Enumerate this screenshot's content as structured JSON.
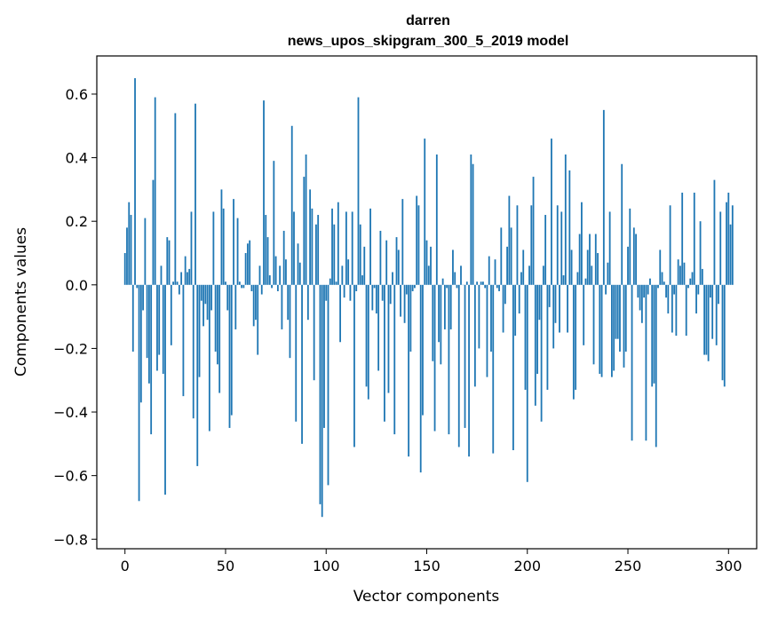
{
  "chart_data": {
    "type": "bar",
    "title": "darren",
    "subtitle": "news_upos_skipgram_300_5_2019 model",
    "xlabel": "Vector components",
    "ylabel": "Components values",
    "xlim": [
      -14,
      314
    ],
    "ylim": [
      -0.83,
      0.72
    ],
    "xticks": [
      0,
      50,
      100,
      150,
      200,
      250,
      300
    ],
    "xtick_labels": [
      "0",
      "50",
      "100",
      "150",
      "200",
      "250",
      "300"
    ],
    "yticks": [
      -0.8,
      -0.6,
      -0.4,
      -0.2,
      0.0,
      0.2,
      0.4,
      0.6
    ],
    "ytick_labels": [
      "−0.8",
      "−0.6",
      "−0.4",
      "−0.2",
      "0.0",
      "0.2",
      "0.4",
      "0.6"
    ],
    "bar_color": "#1f77b4",
    "values": [
      0.1,
      0.18,
      0.26,
      0.22,
      -0.21,
      0.65,
      -0.01,
      -0.68,
      -0.37,
      -0.08,
      0.21,
      -0.23,
      -0.31,
      -0.47,
      0.33,
      0.59,
      -0.27,
      -0.22,
      0.06,
      -0.28,
      -0.66,
      0.15,
      0.14,
      -0.19,
      0.01,
      0.54,
      0.01,
      -0.03,
      0.04,
      -0.35,
      0.09,
      0.04,
      0.05,
      0.23,
      -0.42,
      0.57,
      -0.57,
      -0.29,
      -0.05,
      -0.13,
      -0.06,
      -0.11,
      -0.46,
      -0.08,
      0.23,
      -0.21,
      -0.25,
      -0.34,
      0.3,
      0.24,
      0.01,
      -0.08,
      -0.45,
      -0.41,
      0.27,
      -0.14,
      0.21,
      0.01,
      -0.01,
      -0.01,
      0.1,
      0.13,
      0.14,
      -0.02,
      -0.13,
      -0.11,
      -0.22,
      0.06,
      -0.03,
      0.58,
      0.22,
      0.15,
      0.03,
      -0.01,
      0.39,
      0.09,
      -0.02,
      0.06,
      -0.14,
      0.17,
      0.08,
      -0.11,
      -0.23,
      0.5,
      0.23,
      -0.43,
      0.13,
      0.07,
      -0.5,
      0.34,
      0.41,
      -0.11,
      0.3,
      0.24,
      -0.3,
      0.19,
      0.22,
      -0.69,
      -0.73,
      -0.45,
      -0.05,
      -0.63,
      0.02,
      0.24,
      0.19,
      0.01,
      0.26,
      -0.18,
      0.06,
      -0.04,
      0.23,
      0.08,
      -0.05,
      0.23,
      -0.51,
      -0.02,
      0.59,
      0.19,
      0.03,
      0.12,
      -0.32,
      -0.36,
      0.24,
      -0.08,
      -0.01,
      -0.09,
      -0.27,
      0.17,
      -0.05,
      -0.43,
      0.14,
      -0.34,
      -0.06,
      0.04,
      -0.47,
      0.15,
      0.11,
      -0.1,
      0.27,
      -0.12,
      -0.03,
      -0.54,
      -0.21,
      -0.02,
      -0.01,
      0.28,
      0.25,
      -0.59,
      -0.41,
      0.46,
      0.14,
      0.06,
      0.12,
      -0.24,
      -0.46,
      0.41,
      -0.18,
      -0.25,
      0.02,
      -0.14,
      -0.01,
      -0.47,
      -0.14,
      0.11,
      0.04,
      -0.01,
      -0.51,
      0.06,
      0.0,
      -0.45,
      0.01,
      -0.54,
      0.41,
      0.38,
      -0.32,
      0.01,
      -0.2,
      0.01,
      0.01,
      -0.01,
      -0.29,
      0.09,
      -0.21,
      -0.53,
      0.08,
      -0.01,
      -0.02,
      0.18,
      -0.15,
      -0.06,
      0.12,
      0.28,
      0.18,
      -0.52,
      -0.16,
      0.25,
      -0.09,
      0.04,
      0.11,
      -0.33,
      -0.62,
      0.06,
      0.25,
      0.34,
      -0.38,
      -0.28,
      -0.11,
      -0.43,
      0.06,
      0.22,
      -0.33,
      -0.07,
      0.46,
      -0.2,
      -0.12,
      0.25,
      -0.15,
      0.23,
      0.03,
      0.41,
      -0.15,
      0.36,
      0.11,
      -0.36,
      -0.33,
      0.04,
      0.16,
      0.26,
      -0.19,
      0.02,
      0.11,
      0.16,
      0.06,
      -0.25,
      0.16,
      0.1,
      -0.28,
      -0.29,
      0.55,
      -0.03,
      0.07,
      0.23,
      -0.29,
      -0.27,
      -0.17,
      -0.17,
      -0.21,
      0.38,
      -0.26,
      -0.21,
      0.12,
      0.24,
      -0.49,
      0.18,
      0.16,
      -0.04,
      -0.08,
      -0.12,
      -0.04,
      -0.49,
      -0.03,
      0.02,
      -0.32,
      -0.31,
      -0.51,
      -0.01,
      0.11,
      0.04,
      0.01,
      -0.04,
      -0.09,
      0.25,
      -0.15,
      -0.03,
      -0.16,
      0.08,
      0.06,
      0.29,
      0.07,
      -0.16,
      -0.01,
      0.02,
      0.04,
      0.29,
      -0.09,
      -0.03,
      0.2,
      0.05,
      -0.22,
      -0.22,
      -0.24,
      -0.04,
      -0.17,
      0.33,
      -0.19,
      -0.06,
      0.23,
      -0.3,
      -0.32,
      0.26,
      0.29,
      0.19,
      0.25
    ]
  }
}
